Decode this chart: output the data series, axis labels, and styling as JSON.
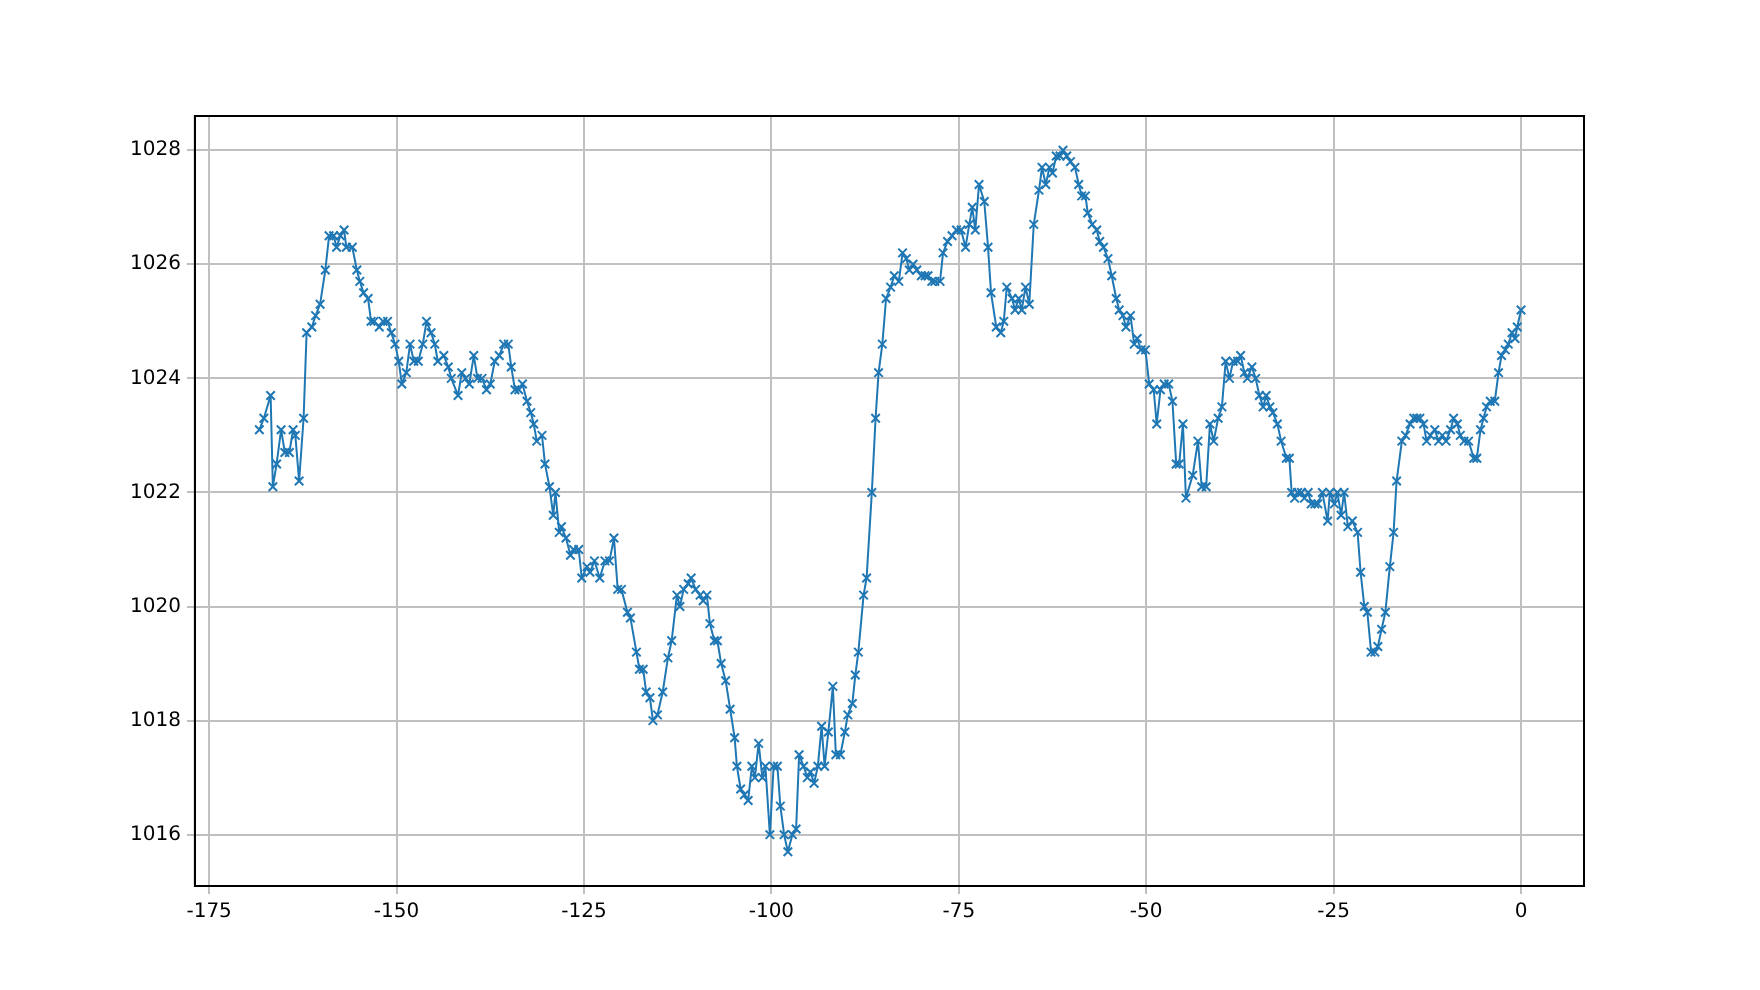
{
  "chart_data": {
    "type": "line",
    "marker": "cross",
    "grid": true,
    "xlim": [
      -176.9,
      8.4
    ],
    "ylim": [
      1015.1,
      1028.6
    ],
    "xticks": [
      -175,
      -150,
      -125,
      -100,
      -75,
      -50,
      -25,
      0
    ],
    "yticks": [
      1016,
      1018,
      1020,
      1022,
      1024,
      1026,
      1028
    ],
    "series": [
      {
        "color": "#1f77b4",
        "x": [
          -168.3,
          -167.7,
          -166.8,
          -166.5,
          -166,
          -165.4,
          -164.9,
          -164.3,
          -163.8,
          -163.5,
          -163,
          -162.4,
          -162,
          -161.3,
          -160.8,
          -160.2,
          -159.5,
          -159,
          -158.4,
          -158,
          -157.5,
          -157,
          -156.7,
          -155.9,
          -155.3,
          -154.9,
          -154.4,
          -153.8,
          -153.4,
          -153,
          -152.3,
          -151.8,
          -151.2,
          -150.7,
          -150.2,
          -149.7,
          -149.3,
          -148.7,
          -148.2,
          -147.7,
          -147.1,
          -146.5,
          -146,
          -145.4,
          -144.9,
          -144.5,
          -143.7,
          -143.1,
          -142.7,
          -141.8,
          -141.3,
          -140.8,
          -140.3,
          -139.7,
          -139.2,
          -138.6,
          -138,
          -137.5,
          -136.9,
          -136.3,
          -135.7,
          -135.1,
          -134.7,
          -134.2,
          -133.7,
          -133.2,
          -132.6,
          -132.1,
          -131.7,
          -131.3,
          -130.6,
          -130.2,
          -129.6,
          -129.1,
          -128.8,
          -128.3,
          -128,
          -127.4,
          -126.8,
          -126.4,
          -125.7,
          -125.3,
          -124.6,
          -124.2,
          -123.6,
          -122.9,
          -122.2,
          -121.6,
          -121,
          -120.5,
          -120,
          -119.2,
          -118.8,
          -118,
          -117.6,
          -117.1,
          -116.7,
          -116.2,
          -115.8,
          -115.2,
          -114.5,
          -113.8,
          -113.3,
          -112.6,
          -112.2,
          -111.7,
          -111.1,
          -110.7,
          -110.1,
          -109.5,
          -109.1,
          -108.6,
          -108.2,
          -107.6,
          -107.2,
          -106.7,
          -106.1,
          -105.5,
          -104.9,
          -104.6,
          -104.1,
          -103.6,
          -103.1,
          -102.6,
          -102.2,
          -101.7,
          -101.2,
          -100.8,
          -100.2,
          -99.7,
          -99.2,
          -98.8,
          -98.3,
          -97.8,
          -97.2,
          -96.7,
          -96.3,
          -95.7,
          -95.2,
          -94.8,
          -94.3,
          -93.8,
          -93.3,
          -92.9,
          -92.4,
          -91.8,
          -91.4,
          -90.8,
          -90.2,
          -89.8,
          -89.2,
          -88.8,
          -88.4,
          -87.7,
          -87.3,
          -86.6,
          -86.1,
          -85.7,
          -85.2,
          -84.7,
          -84.1,
          -83.6,
          -83,
          -82.5,
          -82,
          -81.6,
          -81.1,
          -80.6,
          -80,
          -79.5,
          -79.1,
          -78.6,
          -78.2,
          -77.5,
          -77.1,
          -76.5,
          -75.9,
          -75.3,
          -74.7,
          -74.1,
          -73.6,
          -73.2,
          -72.8,
          -72.3,
          -71.6,
          -71.1,
          -70.7,
          -70,
          -69.4,
          -69,
          -68.6,
          -67.9,
          -67.5,
          -67,
          -66.6,
          -66.1,
          -65.6,
          -65,
          -64.3,
          -63.9,
          -63.4,
          -62.9,
          -62.5,
          -62,
          -61.5,
          -61.1,
          -60.6,
          -60.1,
          -59.5,
          -59,
          -58.6,
          -58.1,
          -57.8,
          -57.2,
          -56.6,
          -56.2,
          -55.7,
          -55.1,
          -54.6,
          -54,
          -53.6,
          -53.1,
          -52.7,
          -52.1,
          -51.6,
          -51.2,
          -50.7,
          -50.1,
          -49.6,
          -49,
          -48.6,
          -48.1,
          -47.6,
          -47,
          -46.5,
          -46,
          -45.6,
          -45.1,
          -44.7,
          -43.8,
          -43.1,
          -42.6,
          -42,
          -41.5,
          -41,
          -40.4,
          -39.9,
          -39.4,
          -38.9,
          -38.4,
          -37.8,
          -37.4,
          -36.9,
          -36.5,
          -35.9,
          -35.4,
          -34.9,
          -34.4,
          -34,
          -33.5,
          -33.1,
          -32.5,
          -32,
          -31.3,
          -30.9,
          -30.6,
          -30.2,
          -29.8,
          -29.3,
          -28.9,
          -28.4,
          -28,
          -27.5,
          -27.1,
          -26.5,
          -25.8,
          -25.5,
          -24.9,
          -24.5,
          -24,
          -23.6,
          -23.1,
          -22.5,
          -21.8,
          -21.4,
          -20.9,
          -20.5,
          -20,
          -19.5,
          -19.1,
          -18.6,
          -18.1,
          -17.5,
          -17,
          -16.6,
          -15.9,
          -15.4,
          -14.8,
          -14.3,
          -13.9,
          -13.5,
          -13,
          -12.6,
          -12.1,
          -11.5,
          -11,
          -10.5,
          -10,
          -9.4,
          -9,
          -8.5,
          -8.1,
          -7.6,
          -7,
          -6.3,
          -5.9,
          -5.4,
          -5,
          -4.6,
          -4.1,
          -3.5,
          -3,
          -2.6,
          -2.1,
          -1.7,
          -1.2,
          -0.8,
          -0.5,
          0
        ],
        "values": [
          1023.1,
          1023.3,
          1023.7,
          1022.1,
          1022.5,
          1023.1,
          1022.7,
          1022.7,
          1023.1,
          1023,
          1022.2,
          1023.3,
          1024.8,
          1024.9,
          1025.1,
          1025.3,
          1025.9,
          1026.5,
          1026.5,
          1026.3,
          1026.5,
          1026.6,
          1026.3,
          1026.3,
          1025.9,
          1025.7,
          1025.5,
          1025.4,
          1025,
          1025,
          1024.9,
          1025,
          1025,
          1024.8,
          1024.6,
          1024.3,
          1023.9,
          1024.1,
          1024.6,
          1024.3,
          1024.3,
          1024.6,
          1025,
          1024.8,
          1024.6,
          1024.3,
          1024.4,
          1024.2,
          1024,
          1023.7,
          1024.1,
          1024,
          1023.9,
          1024.4,
          1024,
          1024,
          1023.8,
          1023.9,
          1024.3,
          1024.4,
          1024.6,
          1024.6,
          1024.2,
          1023.8,
          1023.8,
          1023.9,
          1023.6,
          1023.4,
          1023.2,
          1022.9,
          1023,
          1022.5,
          1022.1,
          1021.6,
          1022,
          1021.3,
          1021.4,
          1021.2,
          1020.9,
          1021,
          1021,
          1020.5,
          1020.7,
          1020.6,
          1020.8,
          1020.5,
          1020.8,
          1020.8,
          1021.2,
          1020.3,
          1020.3,
          1019.9,
          1019.8,
          1019.2,
          1018.9,
          1018.9,
          1018.5,
          1018.4,
          1018,
          1018.1,
          1018.5,
          1019.1,
          1019.4,
          1020.2,
          1020,
          1020.3,
          1020.4,
          1020.5,
          1020.3,
          1020.2,
          1020.1,
          1020.2,
          1019.7,
          1019.4,
          1019.4,
          1019,
          1018.7,
          1018.2,
          1017.7,
          1017.2,
          1016.8,
          1016.7,
          1016.6,
          1017.2,
          1017,
          1017.6,
          1017,
          1017.2,
          1016,
          1017.2,
          1017.2,
          1016.5,
          1016,
          1015.7,
          1016,
          1016.1,
          1017.4,
          1017.2,
          1017,
          1017.1,
          1016.9,
          1017.2,
          1017.9,
          1017.2,
          1017.8,
          1018.6,
          1017.4,
          1017.4,
          1017.8,
          1018.1,
          1018.3,
          1018.8,
          1019.2,
          1020.2,
          1020.5,
          1022,
          1023.3,
          1024.1,
          1024.6,
          1025.4,
          1025.6,
          1025.8,
          1025.7,
          1026.2,
          1026.1,
          1025.9,
          1026,
          1025.9,
          1025.8,
          1025.8,
          1025.8,
          1025.7,
          1025.7,
          1025.7,
          1026.2,
          1026.4,
          1026.5,
          1026.6,
          1026.6,
          1026.3,
          1026.7,
          1027,
          1026.6,
          1027.4,
          1027.1,
          1026.3,
          1025.5,
          1024.9,
          1024.8,
          1025,
          1025.6,
          1025.4,
          1025.2,
          1025.4,
          1025.2,
          1025.6,
          1025.3,
          1026.7,
          1027.3,
          1027.7,
          1027.4,
          1027.7,
          1027.6,
          1027.9,
          1027.9,
          1028,
          1027.9,
          1027.8,
          1027.7,
          1027.4,
          1027.2,
          1027.2,
          1026.9,
          1026.7,
          1026.6,
          1026.4,
          1026.3,
          1026.1,
          1025.8,
          1025.4,
          1025.2,
          1025.1,
          1024.9,
          1025.1,
          1024.6,
          1024.7,
          1024.5,
          1024.5,
          1023.9,
          1023.8,
          1023.2,
          1023.8,
          1023.9,
          1023.9,
          1023.6,
          1022.5,
          1022.5,
          1023.2,
          1021.9,
          1022.3,
          1022.9,
          1022.1,
          1022.1,
          1023.2,
          1022.9,
          1023.3,
          1023.5,
          1024.3,
          1024,
          1024.3,
          1024.3,
          1024.4,
          1024.1,
          1024,
          1024.2,
          1024,
          1023.7,
          1023.5,
          1023.7,
          1023.5,
          1023.4,
          1023.2,
          1022.9,
          1022.6,
          1022.6,
          1022,
          1021.9,
          1022,
          1022,
          1021.9,
          1022,
          1021.8,
          1021.8,
          1021.8,
          1022,
          1021.5,
          1022,
          1021.8,
          1022,
          1021.6,
          1022,
          1021.4,
          1021.5,
          1021.3,
          1020.6,
          1020,
          1019.9,
          1019.2,
          1019.2,
          1019.3,
          1019.6,
          1019.9,
          1020.7,
          1021.3,
          1022.2,
          1022.9,
          1023,
          1023.2,
          1023.3,
          1023.3,
          1023.3,
          1023.2,
          1022.9,
          1023,
          1023.1,
          1022.9,
          1023,
          1022.9,
          1023.1,
          1023.3,
          1023.2,
          1023,
          1022.9,
          1022.9,
          1022.6,
          1022.6,
          1023.1,
          1023.3,
          1023.5,
          1023.6,
          1023.6,
          1024.1,
          1024.4,
          1024.5,
          1024.6,
          1024.8,
          1024.7,
          1024.9,
          1025.2
        ]
      }
    ]
  }
}
